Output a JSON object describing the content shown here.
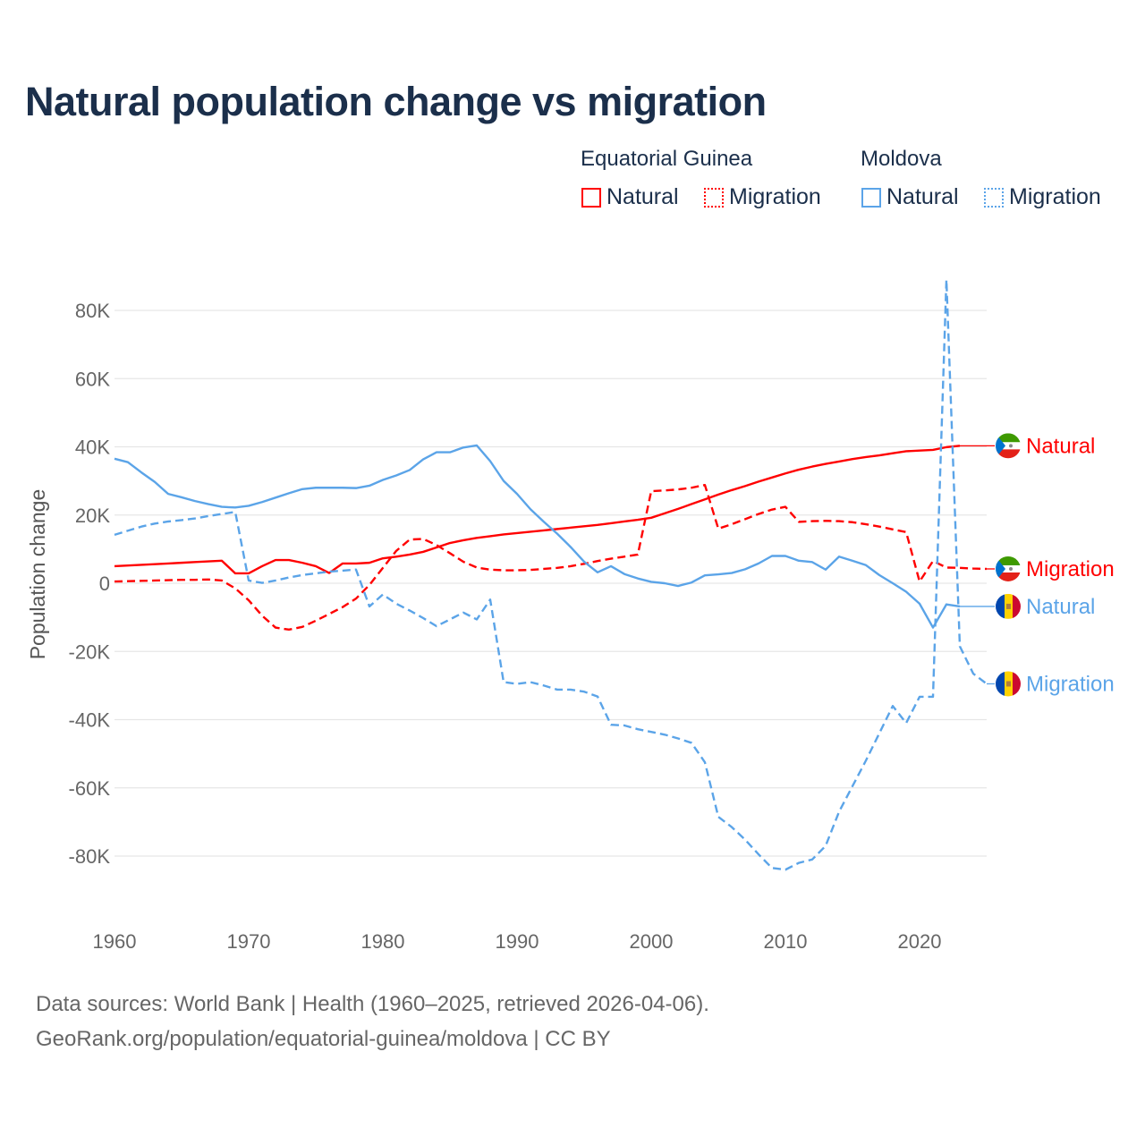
{
  "chart_data": {
    "type": "line",
    "title": "Natural population change vs migration",
    "xlabel": "",
    "ylabel": "Population change",
    "xlim": [
      1960,
      2025
    ],
    "ylim": [
      -100000,
      90000
    ],
    "x_ticks": [
      1960,
      1970,
      1980,
      1990,
      2000,
      2010,
      2020
    ],
    "x_tick_labels": [
      "1960",
      "1970",
      "1980",
      "1990",
      "2000",
      "2010",
      "2020"
    ],
    "y_ticks": [
      -80000,
      -60000,
      -40000,
      -20000,
      0,
      20000,
      40000,
      60000,
      80000
    ],
    "y_tick_labels": [
      "-80K",
      "-60K",
      "-40K",
      "-20K",
      "0",
      "20K",
      "40K",
      "60K",
      "80K"
    ],
    "grid": true,
    "legend_placement": "top-right",
    "legend_groups": [
      "Equatorial Guinea",
      "Moldova"
    ],
    "series": [
      {
        "name": "Natural",
        "country": "Equatorial Guinea",
        "color": "#ff0000",
        "dashed": false,
        "start_year": 1960,
        "end_label": "Natural",
        "values_k": [
          5.0,
          5.2,
          5.4,
          5.6,
          5.8,
          6.0,
          6.2,
          6.4,
          6.6,
          2.9,
          2.9,
          5.0,
          6.8,
          6.8,
          6.0,
          5.0,
          3.0,
          5.8,
          5.8,
          6.0,
          7.3,
          7.8,
          8.4,
          9.2,
          10.5,
          11.8,
          12.6,
          13.3,
          13.8,
          14.3,
          14.7,
          15.1,
          15.5,
          15.9,
          16.3,
          16.7,
          17.1,
          17.6,
          18.1,
          18.6,
          19.2,
          20.5,
          21.8,
          23.2,
          24.6,
          26.0,
          27.3,
          28.5,
          29.8,
          31.0,
          32.2,
          33.3,
          34.2,
          35.0,
          35.7,
          36.4,
          37.0,
          37.5,
          38.1,
          38.7,
          38.9,
          39.1,
          39.9,
          40.3
        ]
      },
      {
        "name": "Migration",
        "country": "Equatorial Guinea",
        "color": "#ff0000",
        "dashed": true,
        "start_year": 1960,
        "end_label": "Migration",
        "values_k": [
          0.5,
          0.6,
          0.7,
          0.8,
          0.9,
          1.0,
          1.0,
          1.1,
          0.8,
          -1.5,
          -5.0,
          -9.5,
          -13.0,
          -13.6,
          -12.8,
          -11.0,
          -9.0,
          -7.0,
          -4.5,
          -0.5,
          4.5,
          9.5,
          12.8,
          13.0,
          11.2,
          8.8,
          6.3,
          4.6,
          4.0,
          3.8,
          3.8,
          3.9,
          4.2,
          4.5,
          5.0,
          5.7,
          6.5,
          7.2,
          7.8,
          8.4,
          27.0,
          27.2,
          27.5,
          28.0,
          28.8,
          16.0,
          17.3,
          18.8,
          20.3,
          21.6,
          22.4,
          18.0,
          18.2,
          18.3,
          18.2,
          17.9,
          17.3,
          16.6,
          15.8,
          15.0,
          0.5,
          6.5,
          4.6,
          4.5,
          4.3,
          4.2
        ]
      },
      {
        "name": "Natural",
        "country": "Moldova",
        "color": "#5ba4e8",
        "dashed": false,
        "start_year": 1960,
        "end_label": "Natural",
        "values_k": [
          36.5,
          35.5,
          32.5,
          29.7,
          26.2,
          25.2,
          24.1,
          23.2,
          22.4,
          22.2,
          22.7,
          23.8,
          25.1,
          26.4,
          27.6,
          28.0,
          28.0,
          28.0,
          27.9,
          28.6,
          30.3,
          31.6,
          33.2,
          36.3,
          38.4,
          38.4,
          39.8,
          40.4,
          35.8,
          30.0,
          26.2,
          21.7,
          18.0,
          14.5,
          10.6,
          6.3,
          3.2,
          5.0,
          2.7,
          1.4,
          0.4,
          0.0,
          -0.8,
          0.2,
          2.3,
          2.6,
          3.0,
          4.1,
          5.8,
          8.0,
          8.0,
          6.6,
          6.2,
          4.0,
          7.8,
          6.6,
          5.3,
          2.4,
          0.0,
          -2.5,
          -6.0,
          -13.0,
          -6.2,
          -6.8
        ]
      },
      {
        "name": "Migration",
        "country": "Moldova",
        "color": "#5ba4e8",
        "dashed": true,
        "start_year": 1960,
        "end_label": "Migration",
        "values_k": [
          14.2,
          15.4,
          16.6,
          17.5,
          18.1,
          18.5,
          19.0,
          19.7,
          20.3,
          20.9,
          0.8,
          0.1,
          0.8,
          1.7,
          2.4,
          2.9,
          3.4,
          3.7,
          4.0,
          -6.8,
          -3.3,
          -6.0,
          -8.0,
          -10.2,
          -12.6,
          -10.6,
          -8.6,
          -10.6,
          -4.8,
          -29.0,
          -29.5,
          -29.0,
          -30.0,
          -31.2,
          -31.2,
          -31.8,
          -33.2,
          -41.5,
          -41.7,
          -42.8,
          -43.6,
          -44.4,
          -45.5,
          -46.8,
          -52.5,
          -68.5,
          -71.5,
          -75.2,
          -79.5,
          -83.5,
          -84.0,
          -82.0,
          -81.0,
          -77.0,
          -67.0,
          -59.5,
          -52.0,
          -44.0,
          -36.0,
          -41.0,
          -33.3,
          -33.3,
          89.0,
          -18.5,
          -26.5,
          -29.5
        ]
      }
    ]
  },
  "legend": {
    "eq_guinea": "Equatorial Guinea",
    "moldova": "Moldova",
    "natural": "Natural",
    "migration": "Migration"
  },
  "sources": {
    "line1": "Data sources: World Bank | Health (1960–2025, retrieved 2026-04-06).",
    "line2": "GeoRank.org/population/equatorial-guinea/moldova | CC BY"
  }
}
